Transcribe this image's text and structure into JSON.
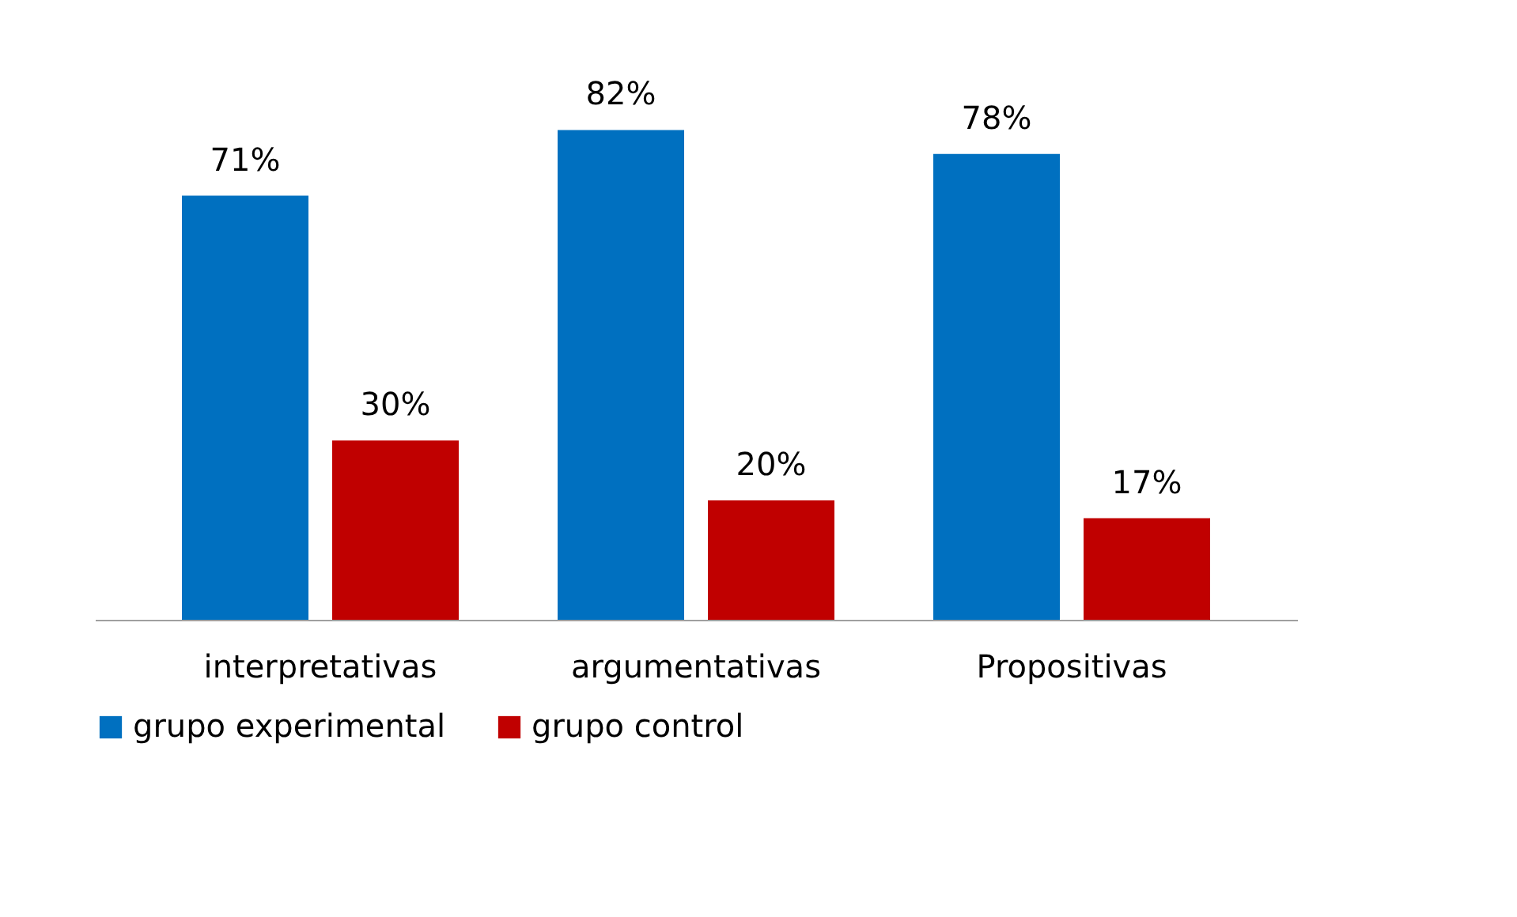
{
  "chart_data": {
    "type": "bar",
    "categories": [
      "interpretativas",
      "argumentativas",
      "Propositivas"
    ],
    "series": [
      {
        "name": "grupo experimental",
        "color": "#0070c0",
        "values": [
          71,
          82,
          78
        ],
        "value_labels": [
          "71%",
          "82%",
          "78%"
        ]
      },
      {
        "name": "grupo control",
        "color": "#c00000",
        "values": [
          30,
          20,
          17
        ],
        "value_labels": [
          "30%",
          "20%",
          "17%"
        ]
      }
    ],
    "tick_labels": "x",
    "grid": false,
    "legend": "bottom"
  }
}
